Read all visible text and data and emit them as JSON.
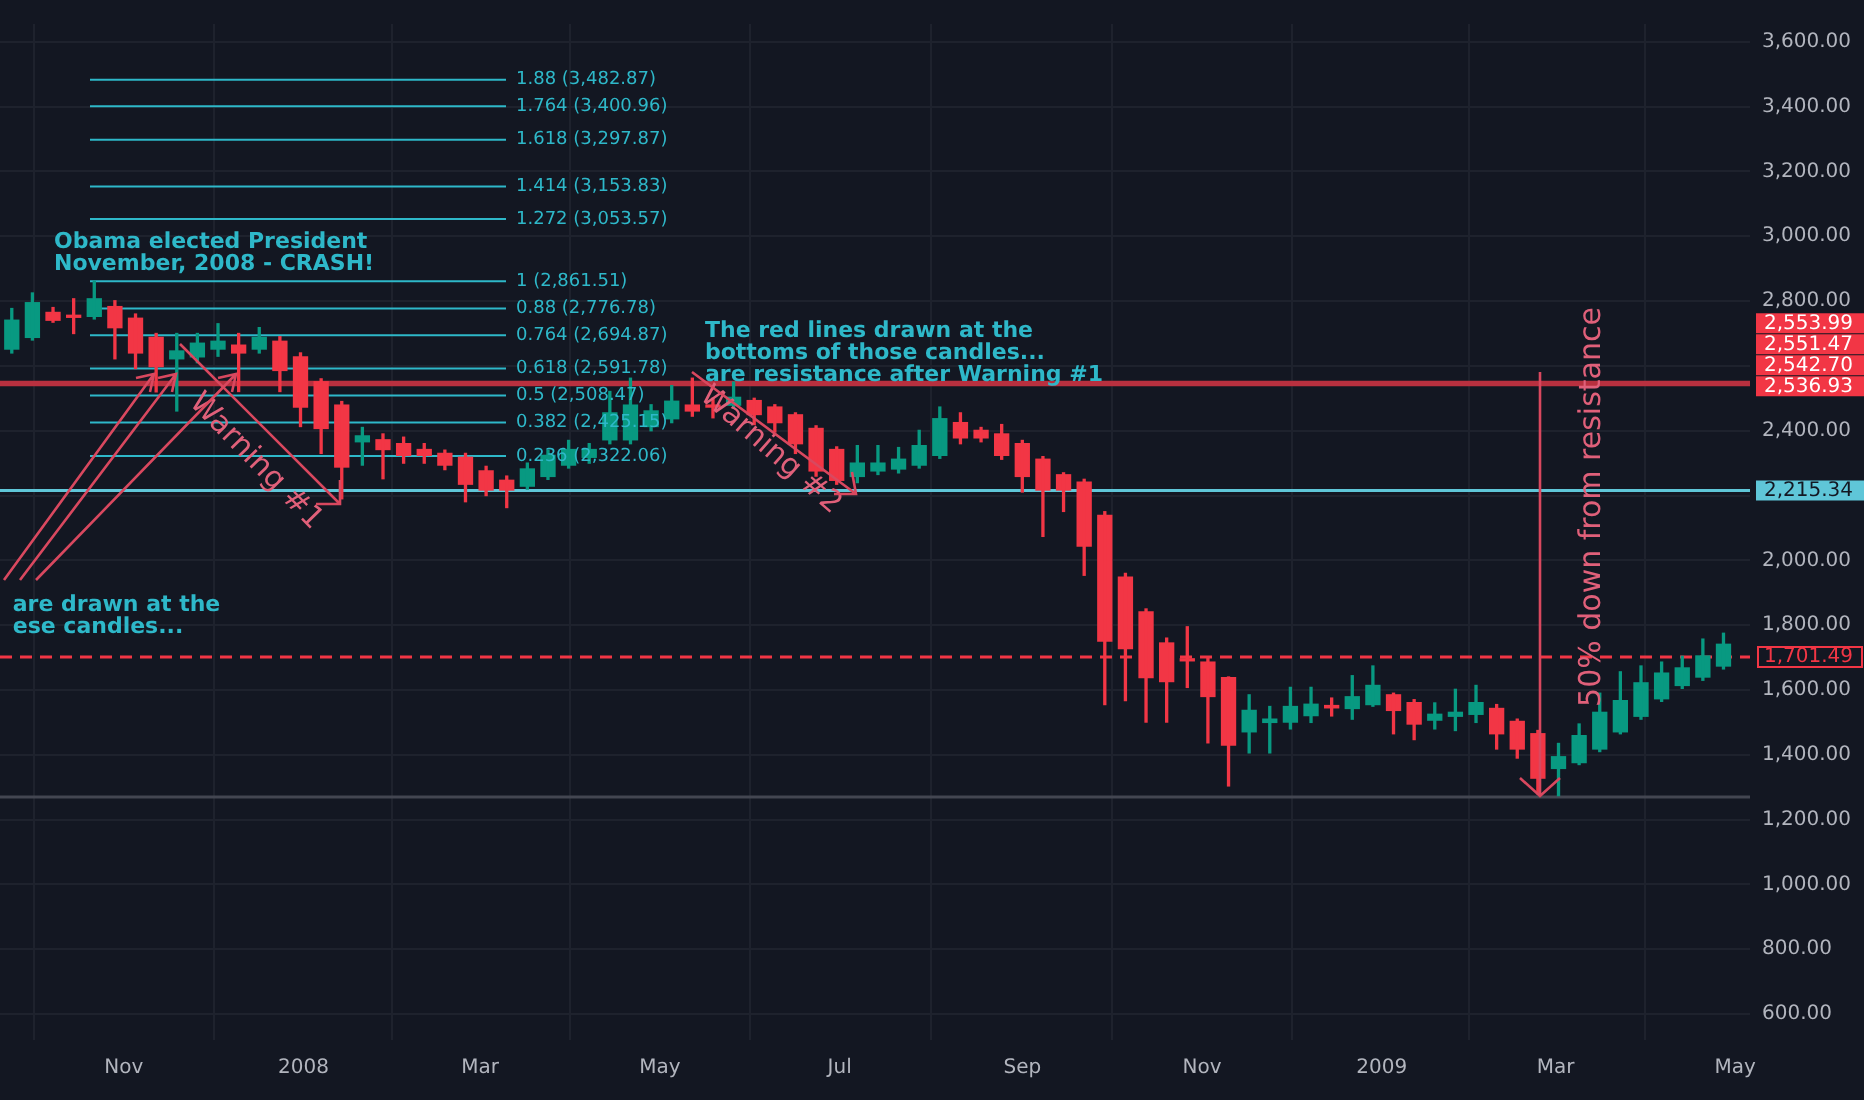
{
  "chart_data": {
    "type": "candlestick",
    "x": [
      "2007-09-24",
      "2007-10-01",
      "2007-10-08",
      "2007-10-15",
      "2007-10-22",
      "2007-10-29",
      "2007-11-05",
      "2007-11-12",
      "2007-11-19",
      "2007-11-26",
      "2007-12-03",
      "2007-12-10",
      "2007-12-17",
      "2007-12-24",
      "2007-12-31",
      "2008-01-07",
      "2008-01-14",
      "2008-01-21",
      "2008-01-28",
      "2008-02-04",
      "2008-02-11",
      "2008-02-18",
      "2008-02-25",
      "2008-03-03",
      "2008-03-10",
      "2008-03-17",
      "2008-03-24",
      "2008-03-31",
      "2008-04-07",
      "2008-04-14",
      "2008-04-21",
      "2008-04-28",
      "2008-05-05",
      "2008-05-12",
      "2008-05-19",
      "2008-05-26",
      "2008-06-02",
      "2008-06-09",
      "2008-06-16",
      "2008-06-23",
      "2008-06-30",
      "2008-07-07",
      "2008-07-14",
      "2008-07-21",
      "2008-07-28",
      "2008-08-04",
      "2008-08-11",
      "2008-08-18",
      "2008-08-25",
      "2008-09-01",
      "2008-09-08",
      "2008-09-15",
      "2008-09-22",
      "2008-09-29",
      "2008-10-06",
      "2008-10-13",
      "2008-10-20",
      "2008-10-27",
      "2008-11-03",
      "2008-11-10",
      "2008-11-17",
      "2008-11-24",
      "2008-12-01",
      "2008-12-08",
      "2008-12-15",
      "2008-12-22",
      "2008-12-29",
      "2009-01-05",
      "2009-01-12",
      "2009-01-19",
      "2009-01-26",
      "2009-02-02",
      "2009-02-09",
      "2009-02-16",
      "2009-02-23",
      "2009-03-02",
      "2009-03-09",
      "2009-03-16",
      "2009-03-23",
      "2009-03-30",
      "2009-04-06",
      "2009-04-13",
      "2009-04-20",
      "2009-04-27"
    ],
    "ohlc": [
      [
        2652,
        2777,
        2640,
        2741
      ],
      [
        2688,
        2825,
        2680,
        2795
      ],
      [
        2765,
        2780,
        2735,
        2741
      ],
      [
        2755,
        2807,
        2700,
        2750
      ],
      [
        2753,
        2861,
        2745,
        2807
      ],
      [
        2783,
        2801,
        2622,
        2718
      ],
      [
        2747,
        2760,
        2592,
        2640
      ],
      [
        2688,
        2700,
        2520,
        2598
      ],
      [
        2622,
        2700,
        2461,
        2646
      ],
      [
        2628,
        2700,
        2610,
        2670
      ],
      [
        2652,
        2730,
        2630,
        2676
      ],
      [
        2664,
        2700,
        2521,
        2640
      ],
      [
        2652,
        2718,
        2640,
        2688
      ],
      [
        2676,
        2690,
        2521,
        2586
      ],
      [
        2628,
        2640,
        2413,
        2473
      ],
      [
        2551,
        2560,
        2330,
        2407
      ],
      [
        2479,
        2490,
        2190,
        2288
      ],
      [
        2366,
        2410,
        2294,
        2384
      ],
      [
        2372,
        2390,
        2252,
        2342
      ],
      [
        2360,
        2380,
        2300,
        2324
      ],
      [
        2342,
        2360,
        2300,
        2324
      ],
      [
        2330,
        2340,
        2280,
        2294
      ],
      [
        2318,
        2330,
        2181,
        2235
      ],
      [
        2276,
        2290,
        2200,
        2217
      ],
      [
        2247,
        2260,
        2163,
        2217
      ],
      [
        2229,
        2300,
        2220,
        2282
      ],
      [
        2259,
        2340,
        2250,
        2324
      ],
      [
        2294,
        2370,
        2285,
        2342
      ],
      [
        2318,
        2360,
        2300,
        2342
      ],
      [
        2372,
        2521,
        2360,
        2455
      ],
      [
        2372,
        2562,
        2360,
        2479
      ],
      [
        2413,
        2480,
        2400,
        2461
      ],
      [
        2437,
        2539,
        2425,
        2491
      ],
      [
        2479,
        2562,
        2445,
        2461
      ],
      [
        2479,
        2500,
        2440,
        2473
      ],
      [
        2479,
        2550,
        2470,
        2503
      ],
      [
        2493,
        2500,
        2419,
        2450
      ],
      [
        2473,
        2480,
        2396,
        2425
      ],
      [
        2449,
        2455,
        2330,
        2360
      ],
      [
        2407,
        2415,
        2260,
        2276
      ],
      [
        2342,
        2350,
        2235,
        2247
      ],
      [
        2259,
        2354,
        2240,
        2300
      ],
      [
        2276,
        2354,
        2265,
        2300
      ],
      [
        2282,
        2348,
        2270,
        2312
      ],
      [
        2294,
        2401,
        2285,
        2354
      ],
      [
        2324,
        2473,
        2315,
        2437
      ],
      [
        2425,
        2455,
        2360,
        2378
      ],
      [
        2401,
        2410,
        2366,
        2378
      ],
      [
        2390,
        2419,
        2312,
        2324
      ],
      [
        2360,
        2370,
        2211,
        2259
      ],
      [
        2312,
        2320,
        2074,
        2217
      ],
      [
        2264,
        2270,
        2151,
        2217
      ],
      [
        2241,
        2250,
        1954,
        2044
      ],
      [
        2139,
        2150,
        1555,
        1751
      ],
      [
        1948,
        1960,
        1567,
        1728
      ],
      [
        1841,
        1850,
        1501,
        1638
      ],
      [
        1745,
        1760,
        1501,
        1626
      ],
      [
        1695,
        1795,
        1608,
        1690
      ],
      [
        1686,
        1700,
        1437,
        1580
      ],
      [
        1638,
        1640,
        1304,
        1430
      ],
      [
        1471,
        1585,
        1406,
        1537
      ],
      [
        1500,
        1549,
        1406,
        1510
      ],
      [
        1501,
        1608,
        1480,
        1549
      ],
      [
        1521,
        1608,
        1500,
        1556
      ],
      [
        1552,
        1575,
        1520,
        1545
      ],
      [
        1543,
        1644,
        1510,
        1579
      ],
      [
        1555,
        1674,
        1550,
        1614
      ],
      [
        1585,
        1590,
        1465,
        1537
      ],
      [
        1561,
        1570,
        1447,
        1495
      ],
      [
        1507,
        1560,
        1480,
        1525
      ],
      [
        1519,
        1602,
        1475,
        1531
      ],
      [
        1525,
        1614,
        1500,
        1561
      ],
      [
        1543,
        1555,
        1418,
        1465
      ],
      [
        1503,
        1510,
        1390,
        1418
      ],
      [
        1465,
        1475,
        1280,
        1328
      ],
      [
        1358,
        1435,
        1274,
        1394
      ],
      [
        1376,
        1495,
        1370,
        1459
      ],
      [
        1418,
        1590,
        1410,
        1531
      ],
      [
        1471,
        1656,
        1465,
        1567
      ],
      [
        1519,
        1674,
        1510,
        1622
      ],
      [
        1573,
        1686,
        1565,
        1652
      ],
      [
        1614,
        1704,
        1605,
        1668
      ],
      [
        1640,
        1757,
        1630,
        1705
      ],
      [
        1674,
        1775,
        1665,
        1741
      ]
    ],
    "colors": [
      "#089981",
      "#089981",
      "#f23645",
      "#f23645",
      "#089981",
      "#f23645",
      "#f23645",
      "#f23645",
      "#089981",
      "#089981",
      "#089981",
      "#f23645",
      "#089981",
      "#f23645",
      "#f23645",
      "#f23645",
      "#f23645",
      "#089981",
      "#f23645",
      "#f23645",
      "#f23645",
      "#f23645",
      "#f23645",
      "#f23645",
      "#f23645",
      "#089981",
      "#089981",
      "#089981",
      "#089981",
      "#089981",
      "#089981",
      "#089981",
      "#089981",
      "#f23645",
      "#f23645",
      "#089981",
      "#f23645",
      "#f23645",
      "#f23645",
      "#f23645",
      "#f23645",
      "#089981",
      "#089981",
      "#089981",
      "#089981",
      "#089981",
      "#f23645",
      "#f23645",
      "#f23645",
      "#f23645",
      "#f23645",
      "#f23645",
      "#f23645",
      "#f23645",
      "#f23645",
      "#f23645",
      "#f23645",
      "#f23645",
      "#f23645",
      "#f23645",
      "#089981",
      "#089981",
      "#089981",
      "#089981",
      "#f23645",
      "#089981",
      "#089981",
      "#f23645",
      "#f23645",
      "#089981",
      "#089981",
      "#089981",
      "#f23645",
      "#f23645",
      "#f23645",
      "#089981",
      "#089981",
      "#089981",
      "#089981",
      "#089981",
      "#089981",
      "#089981",
      "#089981",
      "#089981"
    ],
    "xlim": [
      "2007-09-20",
      "2009-05-06"
    ],
    "xticks": [
      {
        "value": "2007-11-01",
        "label": "Nov"
      },
      {
        "value": "2008-01-01",
        "label": "2008"
      },
      {
        "value": "2008-03-01",
        "label": "Mar"
      },
      {
        "value": "2008-05-01",
        "label": "May"
      },
      {
        "value": "2008-07-01",
        "label": "Jul"
      },
      {
        "value": "2008-09-01",
        "label": "Sep"
      },
      {
        "value": "2008-11-01",
        "label": "Nov"
      },
      {
        "value": "2009-01-01",
        "label": "2009"
      },
      {
        "value": "2009-03-01",
        "label": "Mar"
      },
      {
        "value": "2009-05-01",
        "label": "May"
      }
    ],
    "ylim": [
      520,
      3655
    ],
    "yticks": [
      {
        "value": 600,
        "label": "600.00"
      },
      {
        "value": 800,
        "label": "800.00"
      },
      {
        "value": 1000,
        "label": "1,000.00"
      },
      {
        "value": 1200,
        "label": "1,200.00"
      },
      {
        "value": 1400,
        "label": "1,400.00"
      },
      {
        "value": 1600,
        "label": "1,600.00"
      },
      {
        "value": 1800,
        "label": "1,800.00"
      },
      {
        "value": 2000,
        "label": "2,000.00"
      },
      {
        "value": 2200,
        "label": null
      },
      {
        "value": 2400,
        "label": "2,400.00"
      },
      {
        "value": 2600,
        "label": null
      },
      {
        "value": 2800,
        "label": "2,800.00"
      },
      {
        "value": 3000,
        "label": "3,000.00"
      },
      {
        "value": 3200,
        "label": "3,200.00"
      },
      {
        "value": 3400,
        "label": "3,400.00"
      },
      {
        "value": 3600,
        "label": "3,600.00"
      }
    ],
    "grid": true,
    "ref_lines": [
      {
        "axis": "y",
        "value": 2215.34,
        "color": "#5fc6d8",
        "line_style": "solid"
      },
      {
        "axis": "y",
        "value": 1701.49,
        "color": "#f23645",
        "line_style": "dashed"
      },
      {
        "axis": "y",
        "value": 1270,
        "color": "#434651",
        "line_style": "solid"
      },
      {
        "axis": "y",
        "value": 3482.87,
        "label": "1.88 (3,482.87)",
        "color": "#2eb8c9",
        "line_style": "solid"
      },
      {
        "axis": "y",
        "value": 3400.96,
        "label": "1.764 (3,400.96)",
        "color": "#2eb8c9",
        "line_style": "solid"
      },
      {
        "axis": "y",
        "value": 3297.87,
        "label": "1.618 (3,297.87)",
        "color": "#2eb8c9",
        "line_style": "solid"
      },
      {
        "axis": "y",
        "value": 3153.83,
        "label": "1.414 (3,153.83)",
        "color": "#2eb8c9",
        "line_style": "solid"
      },
      {
        "axis": "y",
        "value": 3053.57,
        "label": "1.272 (3,053.57)",
        "color": "#2eb8c9",
        "line_style": "solid"
      },
      {
        "axis": "y",
        "value": 2861.51,
        "label": "1 (2,861.51)",
        "color": "#2eb8c9",
        "line_style": "solid"
      },
      {
        "axis": "y",
        "value": 2776.78,
        "label": "0.88 (2,776.78)",
        "color": "#2eb8c9",
        "line_style": "solid"
      },
      {
        "axis": "y",
        "value": 2694.87,
        "label": "0.764 (2,694.87)",
        "color": "#2eb8c9",
        "line_style": "solid"
      },
      {
        "axis": "y",
        "value": 2591.78,
        "label": "0.618 (2,591.78)",
        "color": "#2eb8c9",
        "line_style": "solid"
      },
      {
        "axis": "y",
        "value": 2508.47,
        "label": "0.5 (2,508.47)",
        "color": "#2eb8c9",
        "line_style": "solid"
      },
      {
        "axis": "y",
        "value": 2425.15,
        "label": "0.382 (2,425.15)",
        "color": "#2eb8c9",
        "line_style": "solid"
      },
      {
        "axis": "y",
        "value": 2322.06,
        "label": "0.236 (2,322.06)",
        "color": "#2eb8c9",
        "line_style": "solid"
      }
    ],
    "bands": [
      {
        "axis": "y",
        "from": 2536.93,
        "to": 2553.99,
        "color": "#b8303f"
      }
    ],
    "annotations": [
      "Obama elected President\nNovember, 2008 - CRASH!",
      {
        "text": "are drawn at the\nese candles...",
        "x": "2007-11-19",
        "y": 2540
      },
      {
        "text": "The red lines drawn at the\nbottoms of those candles...\nare resistance after Warning #1",
        "x": "2008-05-19",
        "y": 2545
      },
      "Warning #1",
      "Warning #2",
      {
        "text": "50% down from resistance",
        "x": "2009-02-23",
        "y": 1270
      },
      {
        "text": "2,553.99",
        "x": "2009-05-06",
        "y": 2553.99
      },
      {
        "text": "2,551.47",
        "x": "2009-05-06",
        "y": 2551.47
      },
      {
        "text": "2,542.70",
        "x": "2009-05-06",
        "y": 2542.7
      },
      {
        "text": "2,536.93",
        "x": "2009-05-06",
        "y": 2536.93
      },
      {
        "text": "2,215.34",
        "x": "2009-05-06",
        "y": 2215.34
      },
      {
        "text": "1,701.49",
        "x": "2009-05-06",
        "y": 1701.49
      }
    ]
  }
}
